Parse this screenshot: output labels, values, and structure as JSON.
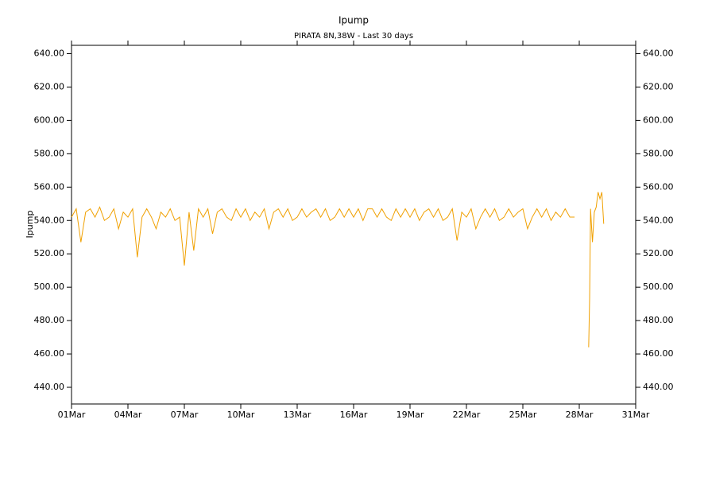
{
  "chart_data": {
    "type": "line",
    "title": "Ipump",
    "subtitle": "PIRATA 8N,38W - Last 30 days",
    "y_label": "Ipump",
    "color": "#f0a000",
    "xlim": [
      1,
      31
    ],
    "xticks": [
      {
        "value": 1,
        "label": "01Mar"
      },
      {
        "value": 4,
        "label": "04Mar"
      },
      {
        "value": 7,
        "label": "07Mar"
      },
      {
        "value": 10,
        "label": "10Mar"
      },
      {
        "value": 13,
        "label": "13Mar"
      },
      {
        "value": 16,
        "label": "16Mar"
      },
      {
        "value": 19,
        "label": "19Mar"
      },
      {
        "value": 22,
        "label": "22Mar"
      },
      {
        "value": 25,
        "label": "25Mar"
      },
      {
        "value": 28,
        "label": "28Mar"
      },
      {
        "value": 31,
        "label": "31Mar"
      }
    ],
    "ylim": [
      430,
      645
    ],
    "yticks": [
      {
        "value": 440,
        "label": "440.00"
      },
      {
        "value": 460,
        "label": "460.00"
      },
      {
        "value": 480,
        "label": "480.00"
      },
      {
        "value": 500,
        "label": "500.00"
      },
      {
        "value": 520,
        "label": "520.00"
      },
      {
        "value": 540,
        "label": "540.00"
      },
      {
        "value": 560,
        "label": "560.00"
      },
      {
        "value": 580,
        "label": "580.00"
      },
      {
        "value": 600,
        "label": "600.00"
      },
      {
        "value": 620,
        "label": "620.00"
      },
      {
        "value": 640,
        "label": "640.00"
      }
    ],
    "x": [
      1,
      1.25,
      1.5,
      1.75,
      2,
      2.25,
      2.5,
      2.75,
      3,
      3.25,
      3.5,
      3.75,
      4,
      4.25,
      4.5,
      4.75,
      5,
      5.25,
      5.5,
      5.75,
      6,
      6.25,
      6.5,
      6.75,
      7,
      7.25,
      7.5,
      7.75,
      8,
      8.25,
      8.5,
      8.75,
      9,
      9.25,
      9.5,
      9.75,
      10,
      10.25,
      10.5,
      10.75,
      11,
      11.25,
      11.5,
      11.75,
      12,
      12.25,
      12.5,
      12.75,
      13,
      13.25,
      13.5,
      13.75,
      14,
      14.25,
      14.5,
      14.75,
      15,
      15.25,
      15.5,
      15.75,
      16,
      16.25,
      16.5,
      16.75,
      17,
      17.25,
      17.5,
      17.75,
      18,
      18.25,
      18.5,
      18.75,
      19,
      19.25,
      19.5,
      19.75,
      20,
      20.25,
      20.5,
      20.75,
      21,
      21.25,
      21.5,
      21.75,
      22,
      22.25,
      22.5,
      22.75,
      23,
      23.25,
      23.5,
      23.75,
      24,
      24.25,
      24.5,
      24.75,
      25,
      25.25,
      25.5,
      25.75,
      26,
      26.25,
      26.5,
      26.75,
      27,
      27.25,
      27.5,
      27.75,
      28.2,
      28.5,
      28.55,
      28.6,
      28.7,
      28.8,
      28.9,
      29,
      29.1,
      29.2,
      29.3
    ],
    "values": [
      542,
      547,
      527,
      545,
      547,
      542,
      548,
      540,
      542,
      547,
      535,
      545,
      542,
      547,
      518,
      542,
      547,
      542,
      535,
      545,
      542,
      547,
      540,
      542,
      513,
      545,
      522,
      547,
      542,
      547,
      532,
      545,
      547,
      542,
      540,
      547,
      542,
      547,
      540,
      545,
      542,
      547,
      535,
      545,
      547,
      542,
      547,
      540,
      542,
      547,
      542,
      545,
      547,
      542,
      547,
      540,
      542,
      547,
      542,
      547,
      542,
      547,
      540,
      547,
      547,
      542,
      547,
      542,
      540,
      547,
      542,
      547,
      542,
      547,
      540,
      545,
      547,
      542,
      547,
      540,
      542,
      547,
      528,
      545,
      542,
      547,
      535,
      542,
      547,
      542,
      547,
      540,
      542,
      547,
      542,
      545,
      547,
      535,
      542,
      547,
      542,
      547,
      540,
      545,
      542,
      547,
      542,
      542,
      null,
      464,
      493,
      547,
      527,
      545,
      548,
      557,
      553,
      557,
      538
    ]
  }
}
